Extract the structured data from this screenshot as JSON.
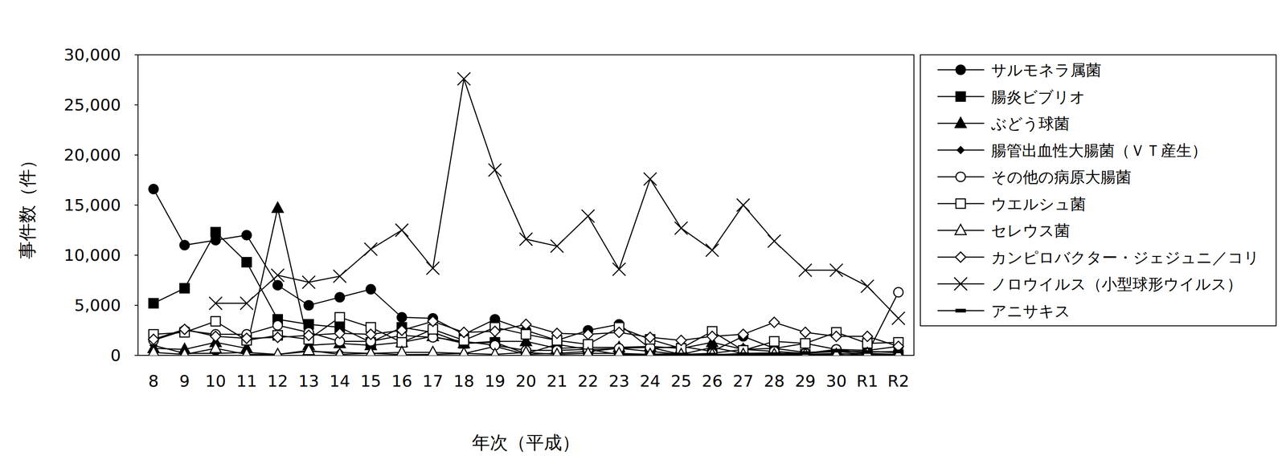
{
  "chart_data": {
    "type": "line",
    "x_label": "年次（平成）",
    "y_label": "事件数（件）",
    "categories": [
      "8",
      "9",
      "10",
      "11",
      "12",
      "13",
      "14",
      "15",
      "16",
      "17",
      "18",
      "19",
      "20",
      "21",
      "22",
      "23",
      "24",
      "25",
      "26",
      "27",
      "28",
      "29",
      "30",
      "R1",
      "R2"
    ],
    "ylim": [
      0,
      30000
    ],
    "yticks": [
      0,
      {
        "value": 5000,
        "label": "5,000"
      },
      {
        "value": 10000,
        "label": "10,000"
      },
      {
        "value": 15000,
        "label": "15,000"
      },
      {
        "value": 20000,
        "label": "20,000"
      },
      {
        "value": 25000,
        "label": "25,000"
      },
      {
        "value": 30000,
        "label": "30,000"
      }
    ],
    "grid": false,
    "legend": "right",
    "series": [
      {
        "name": "サルモネラ属菌",
        "color": "#000000",
        "marker": "circle",
        "values": [
          16600,
          11000,
          11500,
          12000,
          7000,
          5000,
          5800,
          6600,
          3800,
          3700,
          2100,
          3600,
          2500,
          1500,
          2500,
          3100,
          700,
          900,
          400,
          1900,
          700,
          1200,
          600,
          500,
          900
        ]
      },
      {
        "name": "腸炎ビブリオ",
        "color": "#000000",
        "marker": "square",
        "values": [
          5200,
          6700,
          12300,
          9300,
          3600,
          3100,
          2800,
          1300,
          2800,
          2300,
          1200,
          1300,
          170,
          1100,
          600,
          90,
          120,
          160,
          40,
          200,
          250,
          100,
          200,
          0,
          3
        ]
      },
      {
        "name": "ぶどう球菌",
        "color": "#000000",
        "marker": "triangle",
        "values": [
          700,
          600,
          1300,
          700,
          14700,
          1000,
          1200,
          1000,
          1300,
          1900,
          1200,
          1400,
          1400,
          700,
          800,
          800,
          900,
          700,
          1300,
          600,
          700,
          300,
          400,
          400,
          260
        ]
      },
      {
        "name": "腸管出血性大腸菌（ＶＴ産生）",
        "color": "#000000",
        "marker": "diamond",
        "values": [
          1000,
          200,
          200,
          300,
          100,
          400,
          300,
          200,
          70,
          100,
          180,
          900,
          100,
          200,
          400,
          700,
          400,
          100,
          800,
          200,
          200,
          200,
          400,
          100,
          30
        ]
      },
      {
        "name": "その他の病原大腸菌",
        "color": "#000000",
        "marker": "circle-open",
        "values": [
          1500,
          2500,
          2100,
          2100,
          3000,
          2300,
          1400,
          1400,
          2000,
          1800,
          1400,
          1000,
          500,
          500,
          600,
          700,
          800,
          100,
          200,
          600,
          400,
          200,
          600,
          200,
          6300
        ]
      },
      {
        "name": "ウエルシュ菌",
        "color": "#000000",
        "marker": "square-open",
        "values": [
          2100,
          2300,
          3400,
          1500,
          2000,
          1600,
          3800,
          2800,
          1300,
          2600,
          1500,
          2800,
          2100,
          1500,
          1100,
          2800,
          1600,
          700,
          2400,
          500,
          1400,
          1200,
          2300,
          1200,
          1300
        ]
      },
      {
        "name": "セレウス菌",
        "color": "#000000",
        "marker": "triangle-open",
        "values": [
          300,
          100,
          700,
          100,
          100,
          500,
          100,
          200,
          300,
          300,
          200,
          100,
          300,
          100,
          200,
          200,
          100,
          100,
          100,
          100,
          100,
          100,
          100,
          200,
          100
        ]
      },
      {
        "name": "カンピロバクター・ジェジュニ／コリ",
        "color": "#000000",
        "marker": "diamond-open",
        "values": [
          1600,
          2600,
          1900,
          1700,
          1800,
          2000,
          2200,
          2100,
          2500,
          3400,
          2300,
          2400,
          3100,
          2200,
          2100,
          2300,
          1800,
          1500,
          1900,
          2100,
          3300,
          2300,
          1900,
          1900,
          900
        ]
      },
      {
        "name": "ノロウイルス（小型球形ウイルス）",
        "color": "#000000",
        "marker": "x",
        "values": [
          null,
          null,
          5200,
          5200,
          8000,
          7300,
          7900,
          10600,
          12500,
          8700,
          27600,
          18500,
          11600,
          10900,
          13900,
          8600,
          17600,
          12700,
          10500,
          15000,
          11400,
          8500,
          8500,
          6900,
          3700
        ]
      },
      {
        "name": "アニサキス",
        "color": "#000000",
        "marker": "dash",
        "values": [
          null,
          null,
          null,
          null,
          null,
          null,
          null,
          null,
          null,
          null,
          null,
          null,
          null,
          null,
          null,
          null,
          null,
          90,
          80,
          130,
          130,
          240,
          470,
          340,
          400
        ]
      }
    ]
  }
}
